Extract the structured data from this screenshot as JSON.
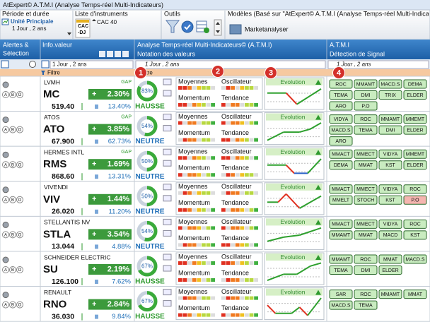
{
  "window_title": "AtExpert© A.T.M.I (Analyse Temps-réel Multi-Indicateurs)",
  "toolbar": {
    "period": {
      "title": "Période et durée",
      "unit": "Unité Principale",
      "range": "1 Jour , 2 ans"
    },
    "instruments": {
      "title": "Liste d'instruments",
      "list_icons": [
        "CAC",
        "-DJ"
      ],
      "selected": "CAC 40"
    },
    "tools": {
      "title": "Outils"
    },
    "models": {
      "title": "Modèles (Basé sur \"AtExpert© A.T.M.I (Analyse Temps-réel Multi-Indicateurs",
      "button": "Marketanalyser"
    }
  },
  "header": {
    "alerts": [
      "Alertes &",
      "Sélection"
    ],
    "info": "Info.valeur",
    "atmi_title": "Analyse Temps-réel Multi-Indicateurs© (A.T.M.I)",
    "atmi_sub": "Notation des valeurs",
    "signal_title": "A.T.M.I",
    "signal_sub": "Détection de Signal"
  },
  "filters": {
    "ranges": [
      "1 Jour , 2 ans",
      "1 Jour , 2 ans",
      "1 Jour , 2 ans"
    ],
    "filter": "Filtre"
  },
  "badges": [
    "1",
    "2",
    "3",
    "4"
  ],
  "alert_letters": [
    "A",
    "B",
    "O"
  ],
  "indicator_labels": {
    "averages": "Moyennes",
    "oscillator": "Oscillateur",
    "momentum": "Momentum",
    "trend": "Tendance",
    "evolution": "Evolution"
  },
  "rows": [
    {
      "name": "LVMH",
      "ticker": "MC",
      "gap": "GAP",
      "sign": "+",
      "change": "2.30%",
      "price": "519.40",
      "volatility": "13.40%",
      "score": 83,
      "score_label": "83%",
      "verdict": "HAUSSE",
      "verdict_color": "#2e9a2e",
      "signals": [
        "ROC",
        "MMAMT",
        "MACD.S",
        "DEMA",
        "TEMA",
        "DMI",
        "TRIX",
        "ELDER",
        "ARO",
        "P.O"
      ]
    },
    {
      "name": "ATOS",
      "ticker": "ATO",
      "gap": "GAP",
      "sign": "+",
      "change": "3.85%",
      "price": "67.900",
      "volatility": "62.73%",
      "score": 54,
      "score_label": "54%",
      "verdict": "NEUTRE",
      "verdict_color": "#1f6fb8",
      "signals": [
        "VIDYA",
        "ROC",
        "MMAMT",
        "MMEMT",
        "MACD.S",
        "TEMA",
        "DMI",
        "ELDER",
        "ARO"
      ]
    },
    {
      "name": "HERMES INTL",
      "ticker": "RMS",
      "gap": "GAP",
      "sign": "+",
      "change": "1.69%",
      "price": "868.60",
      "volatility": "13.31%",
      "score": 50,
      "score_label": "50%",
      "verdict": "NEUTRE",
      "verdict_color": "#1f6fb8",
      "signals": [
        "MMACT",
        "MMECT",
        "VIDYA",
        "MMEMT",
        "DEMA",
        "MMAT",
        "KST",
        "ELDER"
      ]
    },
    {
      "name": "VIVENDI",
      "ticker": "VIV",
      "sign": "+",
      "change": "1.44%",
      "price": "26.020",
      "volatility": "11.20%",
      "score": 50,
      "score_label": "50%",
      "verdict": "NEUTRE",
      "verdict_color": "#1f6fb8",
      "signals": [
        "MMACT",
        "MMECT",
        "VIDYA",
        "ROC",
        "MMELT",
        "STOCH",
        "KST",
        {
          "label": "P.O",
          "color": "#f5b5b0"
        }
      ]
    },
    {
      "name": "STELLANTIS NV",
      "ticker": "STLA",
      "sign": "+",
      "change": "3.54%",
      "price": "13.044",
      "volatility": "4.88%",
      "score": 54,
      "score_label": "54%",
      "verdict": "NEUTRE",
      "verdict_color": "#1f6fb8",
      "signals": [
        "MMACT",
        "MMECT",
        "VIDYA",
        "ROC",
        "MMAMT",
        "MMAT",
        "MACD",
        "KST"
      ]
    },
    {
      "name": "SCHNEIDER ELECTRIC",
      "ticker": "SU",
      "sign": "+",
      "change": "2.19%",
      "price": "126.100",
      "volatility": "7.62%",
      "score": 67,
      "score_label": "67%",
      "verdict": "HAUSSE",
      "verdict_color": "#2e9a2e",
      "signals": [
        "MMAMT",
        "ROC",
        "MMAT",
        "MACD.S",
        "TEMA",
        "DMI",
        "ELDER"
      ]
    },
    {
      "name": "RENAULT",
      "ticker": "RNO",
      "sign": "+",
      "change": "2.84%",
      "price": "36.030",
      "volatility": "9.84%",
      "score": 67,
      "score_label": "67%",
      "verdict": "HAUSSE",
      "verdict_color": "#2e9a2e",
      "signals": [
        "SAR",
        "ROC",
        "MMAMT",
        "MMAT",
        "MACD.S",
        "TEMA"
      ]
    }
  ]
}
